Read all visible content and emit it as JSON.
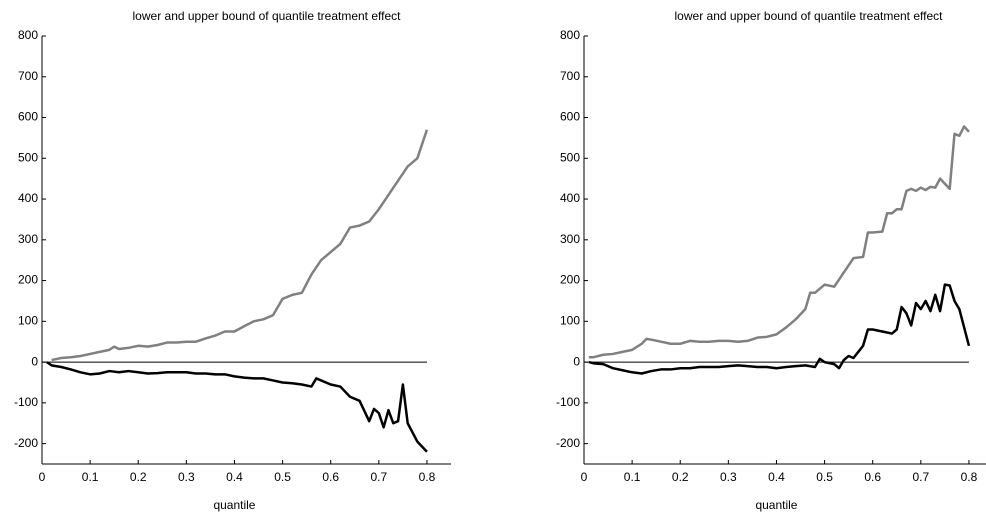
{
  "chart_data": [
    {
      "type": "line",
      "title": "lower and upper bound of quantile treatment effect",
      "xlabel": "quantile",
      "xlim": [
        0,
        0.85
      ],
      "xticks": [
        0,
        0.1,
        0.2,
        0.3,
        0.4,
        0.5,
        0.6,
        0.7,
        0.8
      ],
      "ylim": [
        -250,
        800
      ],
      "yticks": [
        -200,
        -100,
        0,
        100,
        200,
        300,
        400,
        500,
        600,
        700,
        800
      ],
      "reference_line": 0,
      "series": [
        {
          "color": "#808080",
          "x": [
            0.02,
            0.04,
            0.06,
            0.08,
            0.1,
            0.12,
            0.14,
            0.15,
            0.16,
            0.18,
            0.2,
            0.22,
            0.24,
            0.26,
            0.28,
            0.3,
            0.32,
            0.34,
            0.36,
            0.38,
            0.4,
            0.42,
            0.44,
            0.46,
            0.48,
            0.5,
            0.52,
            0.54,
            0.56,
            0.58,
            0.6,
            0.62,
            0.64,
            0.66,
            0.68,
            0.7,
            0.72,
            0.74,
            0.76,
            0.78,
            0.8
          ],
          "values": [
            5,
            10,
            12,
            15,
            20,
            25,
            30,
            38,
            32,
            35,
            40,
            38,
            42,
            48,
            48,
            50,
            50,
            58,
            65,
            75,
            75,
            88,
            100,
            105,
            115,
            155,
            165,
            170,
            215,
            250,
            270,
            290,
            330,
            335,
            345,
            375,
            410,
            445,
            480,
            500,
            570
          ]
        },
        {
          "color": "#000000",
          "x": [
            0.01,
            0.02,
            0.04,
            0.06,
            0.08,
            0.1,
            0.12,
            0.14,
            0.16,
            0.18,
            0.2,
            0.22,
            0.24,
            0.26,
            0.28,
            0.3,
            0.32,
            0.34,
            0.36,
            0.38,
            0.4,
            0.42,
            0.44,
            0.46,
            0.48,
            0.5,
            0.52,
            0.54,
            0.56,
            0.57,
            0.58,
            0.6,
            0.62,
            0.64,
            0.66,
            0.68,
            0.69,
            0.7,
            0.71,
            0.72,
            0.73,
            0.74,
            0.75,
            0.76,
            0.78,
            0.8
          ],
          "values": [
            0,
            -8,
            -12,
            -18,
            -25,
            -30,
            -28,
            -22,
            -25,
            -22,
            -25,
            -28,
            -27,
            -25,
            -25,
            -25,
            -28,
            -28,
            -30,
            -30,
            -35,
            -38,
            -40,
            -40,
            -45,
            -50,
            -52,
            -55,
            -60,
            -40,
            -45,
            -55,
            -60,
            -85,
            -95,
            -145,
            -115,
            -125,
            -160,
            -118,
            -150,
            -145,
            -55,
            -150,
            -195,
            -220
          ]
        }
      ]
    },
    {
      "type": "line",
      "title": "lower and upper bound of quantile treatment effect",
      "xlabel": "quantile",
      "xlim": [
        0,
        0.85
      ],
      "xticks": [
        0,
        0.1,
        0.2,
        0.3,
        0.4,
        0.5,
        0.6,
        0.7,
        0.8
      ],
      "ylim": [
        -250,
        800
      ],
      "yticks": [
        -200,
        -100,
        0,
        100,
        200,
        300,
        400,
        500,
        600,
        700,
        800
      ],
      "reference_line": 0,
      "series": [
        {
          "color": "#808080",
          "x": [
            0.01,
            0.02,
            0.04,
            0.06,
            0.08,
            0.1,
            0.12,
            0.13,
            0.14,
            0.16,
            0.18,
            0.2,
            0.22,
            0.24,
            0.26,
            0.28,
            0.3,
            0.32,
            0.34,
            0.36,
            0.38,
            0.4,
            0.42,
            0.44,
            0.46,
            0.47,
            0.48,
            0.5,
            0.52,
            0.54,
            0.56,
            0.58,
            0.59,
            0.6,
            0.62,
            0.63,
            0.64,
            0.65,
            0.66,
            0.67,
            0.68,
            0.69,
            0.7,
            0.71,
            0.72,
            0.73,
            0.74,
            0.76,
            0.77,
            0.78,
            0.79,
            0.8
          ],
          "values": [
            12,
            12,
            18,
            20,
            25,
            30,
            45,
            57,
            55,
            50,
            45,
            45,
            52,
            50,
            50,
            52,
            52,
            50,
            52,
            60,
            62,
            68,
            85,
            105,
            130,
            170,
            170,
            190,
            185,
            220,
            255,
            258,
            318,
            318,
            320,
            365,
            365,
            375,
            375,
            420,
            425,
            420,
            428,
            422,
            430,
            428,
            450,
            425,
            560,
            555,
            578,
            565
          ]
        },
        {
          "color": "#000000",
          "x": [
            0.01,
            0.02,
            0.04,
            0.06,
            0.08,
            0.1,
            0.12,
            0.14,
            0.16,
            0.18,
            0.2,
            0.22,
            0.24,
            0.26,
            0.28,
            0.3,
            0.32,
            0.34,
            0.36,
            0.38,
            0.4,
            0.42,
            0.44,
            0.46,
            0.48,
            0.49,
            0.5,
            0.52,
            0.53,
            0.54,
            0.55,
            0.56,
            0.58,
            0.59,
            0.6,
            0.62,
            0.64,
            0.65,
            0.66,
            0.67,
            0.68,
            0.69,
            0.7,
            0.71,
            0.72,
            0.73,
            0.74,
            0.75,
            0.76,
            0.77,
            0.78,
            0.8
          ],
          "values": [
            0,
            -3,
            -5,
            -15,
            -20,
            -25,
            -28,
            -22,
            -18,
            -18,
            -15,
            -15,
            -12,
            -12,
            -12,
            -10,
            -8,
            -10,
            -12,
            -12,
            -15,
            -12,
            -10,
            -8,
            -12,
            8,
            0,
            -5,
            -15,
            5,
            15,
            10,
            40,
            80,
            80,
            75,
            70,
            80,
            135,
            120,
            90,
            145,
            130,
            150,
            125,
            165,
            125,
            190,
            188,
            150,
            130,
            40
          ]
        }
      ]
    }
  ]
}
